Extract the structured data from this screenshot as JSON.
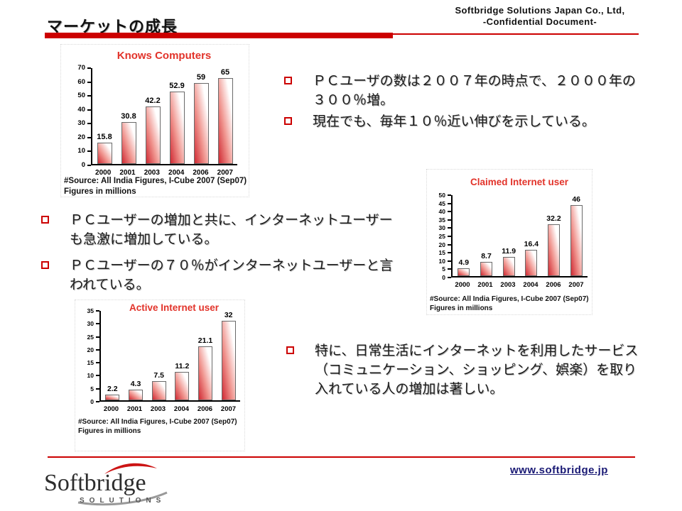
{
  "page": {
    "title": "マーケットの成長",
    "header_right_line1": "Softbridge Solutions Japan Co., Ltd,",
    "header_right_line2": "-Confidential Document-"
  },
  "bullets": {
    "top": [
      "ＰＣユーザの数は２００７年の時点で、２０００年の３００％増。",
      "現在でも、毎年１０％近い伸びを示している。"
    ],
    "middle": [
      "ＰＣユーザーの増加と共に、インターネットユーザーも急激に増加している。",
      "ＰＣユーザーの７０％がインターネットユーザーと言われている。"
    ],
    "bottom": [
      "特に、日常生活にインターネットを利用したサービス（コミュニケーション、ショッピング、娯楽）を取り入れている人の増加は著しい。"
    ]
  },
  "chart_data": [
    {
      "type": "bar",
      "title": "Knows Computers",
      "categories": [
        "2000",
        "2001",
        "2003",
        "2004",
        "2006",
        "2007"
      ],
      "values": [
        15.8,
        30.8,
        42.2,
        52.9,
        59,
        65
      ],
      "ylim": [
        0,
        70
      ],
      "ytick_step": 10,
      "grid": false,
      "legend": "none",
      "source_line1": "#Source: All India Figures, I-Cube 2007 (Sep07)",
      "source_line2": "Figures in millions"
    },
    {
      "type": "bar",
      "title": "Claimed Internet user",
      "categories": [
        "2000",
        "2001",
        "2003",
        "2004",
        "2006",
        "2007"
      ],
      "values": [
        4.9,
        8.7,
        11.9,
        16.4,
        32.2,
        46
      ],
      "ylim": [
        0,
        50
      ],
      "ytick_step": 5,
      "grid": false,
      "legend": "none",
      "source_line1": "#Source: All India Figures, I-Cube 2007 (Sep07)",
      "source_line2": "Figures in millions"
    },
    {
      "type": "bar",
      "title": "Active Internet user",
      "categories": [
        "2000",
        "2001",
        "2003",
        "2004",
        "2006",
        "2007"
      ],
      "values": [
        2.2,
        4.3,
        7.5,
        11.2,
        21.1,
        32
      ],
      "ylim": [
        0,
        35
      ],
      "ytick_step": 5,
      "grid": false,
      "legend": "none",
      "source_line1": "#Source: All India Figures, I-Cube 2007 (Sep07)",
      "source_line2": "Figures in millions"
    }
  ],
  "footer": {
    "url": "www.softbridge.jp",
    "logo_text": "Softbridge",
    "logo_subtext": "SOLUTIONS"
  },
  "colors": {
    "accent_red": "#CC0000",
    "chart_title_red": "#E2332A",
    "bar_gradient_red": "#CF2A33",
    "url_navy": "#1A1A75"
  }
}
